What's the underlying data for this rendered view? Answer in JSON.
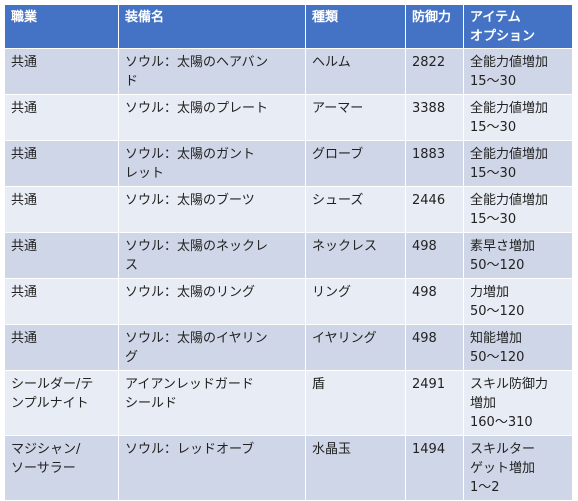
{
  "table": {
    "headers": [
      "職業",
      "装備名",
      "種類",
      "防御力",
      "アイテム\nオプション"
    ],
    "rows": [
      {
        "job": "共通",
        "name": "ソウル：太陽のヘアバン\nド",
        "type": "ヘルム",
        "defense": "2822",
        "option": "全能力値増加\n15～30"
      },
      {
        "job": "共通",
        "name": "ソウル：太陽のプレート",
        "type": "アーマー",
        "defense": "3388",
        "option": "全能力値増加\n15～30"
      },
      {
        "job": "共通",
        "name": "ソウル：太陽のガント\nレット",
        "type": "グローブ",
        "defense": "1883",
        "option": "全能力値増加\n15～30"
      },
      {
        "job": "共通",
        "name": "ソウル：太陽のブーツ",
        "type": "シューズ",
        "defense": "2446",
        "option": "全能力値増加\n15～30"
      },
      {
        "job": "共通",
        "name": "ソウル：太陽のネックレ\nス",
        "type": "ネックレス",
        "defense": "498",
        "option": "素早さ増加\n50～120"
      },
      {
        "job": "共通",
        "name": "ソウル：太陽のリング",
        "type": "リング",
        "defense": "498",
        "option": "力増加\n50～120"
      },
      {
        "job": "共通",
        "name": "ソウル：太陽のイヤリン\nグ",
        "type": "イヤリング",
        "defense": "498",
        "option": "知能増加\n50～120"
      },
      {
        "job": "シールダー/テ\nンプルナイト",
        "name": "アイアンレッドガード\nシールド",
        "type": "盾",
        "defense": "2491",
        "option": "スキル防御力\n増加\n160～310"
      },
      {
        "job": "マジシャン/\nソーサラー",
        "name": "ソウル：レッドオーブ",
        "type": "水晶玉",
        "defense": "1494",
        "option": "スキルター\nゲット増加\n1～2"
      }
    ]
  }
}
